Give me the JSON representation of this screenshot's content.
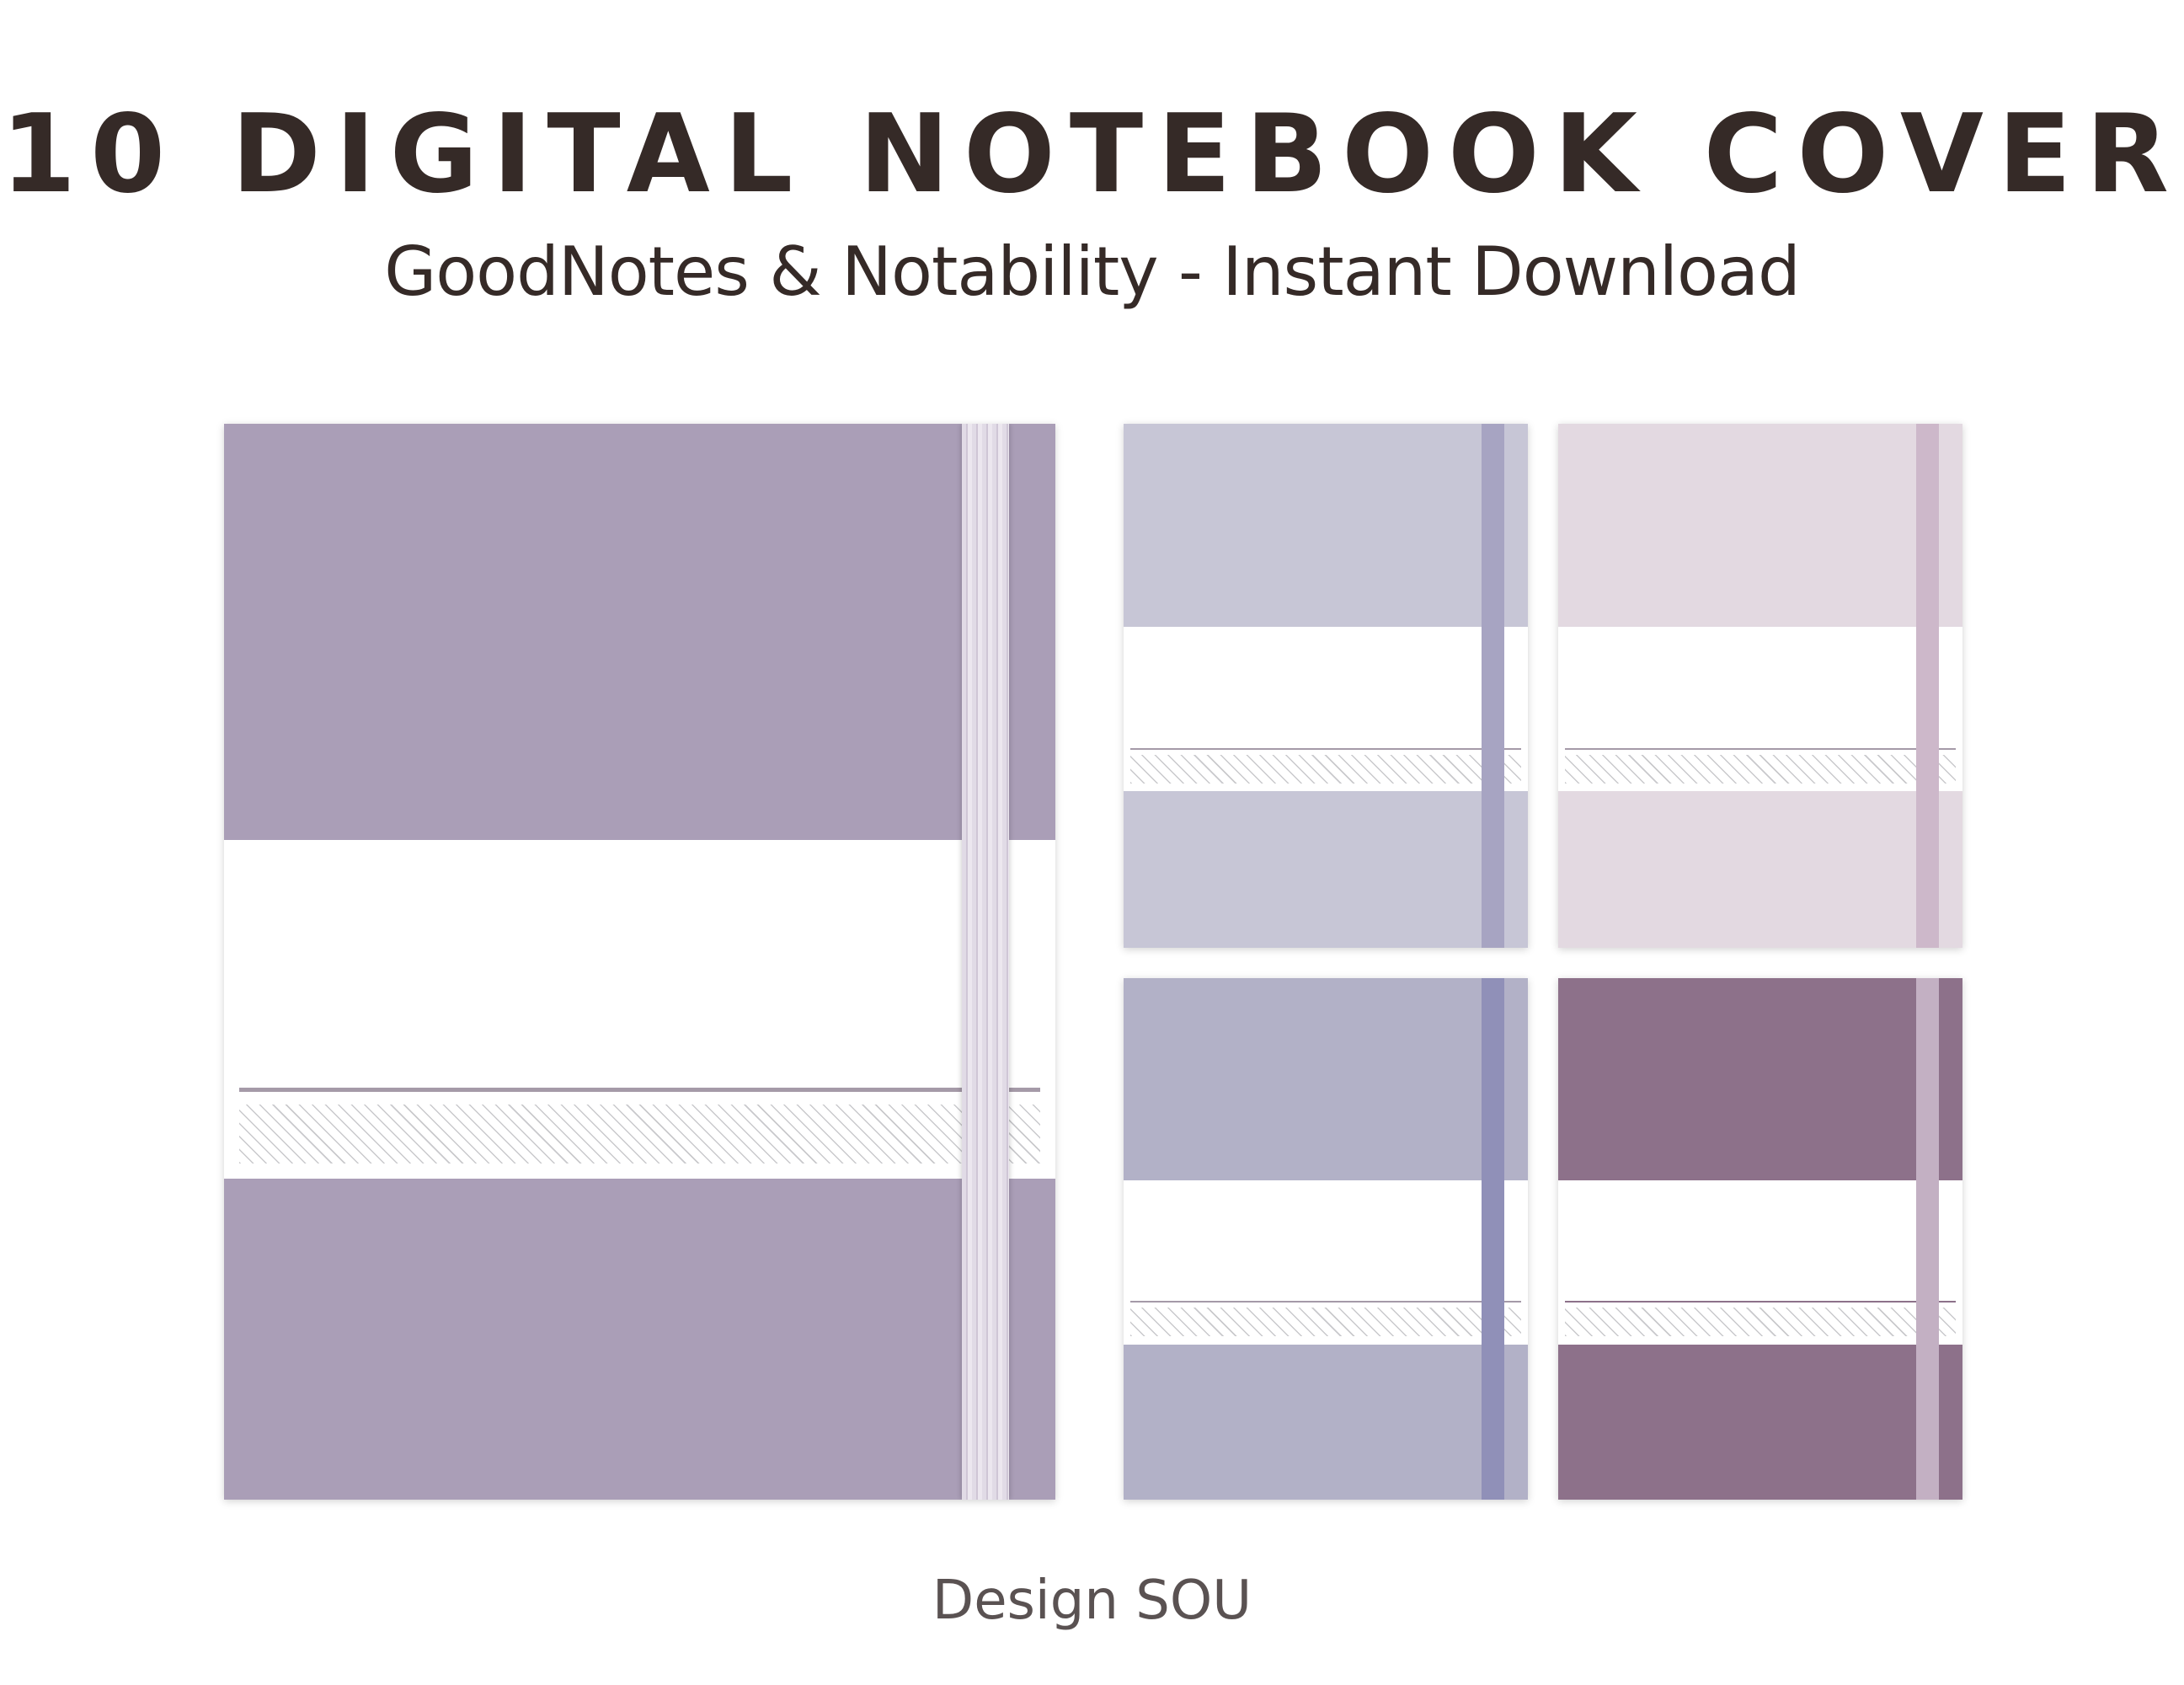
{
  "header": {
    "title": "10 DIGITAL NOTEBOOK COVER",
    "subtitle": "GoodNotes & Notability - Instant Download"
  },
  "footer": {
    "brand": "Design SOU"
  },
  "covers": [
    {
      "name": "large-lavender",
      "color": "#aa9eb7",
      "band_color": "#e5deea"
    },
    {
      "name": "periwinkle",
      "color": "#c7c6d6",
      "band_color": "#a7a4c2"
    },
    {
      "name": "blush",
      "color": "#e3d9e1",
      "band_color": "#cdb8ca"
    },
    {
      "name": "blue-grey",
      "color": "#b2b1c7",
      "band_color": "#9090b8"
    },
    {
      "name": "plum",
      "color": "#8d718a",
      "band_color": "#c3b0c3"
    }
  ]
}
